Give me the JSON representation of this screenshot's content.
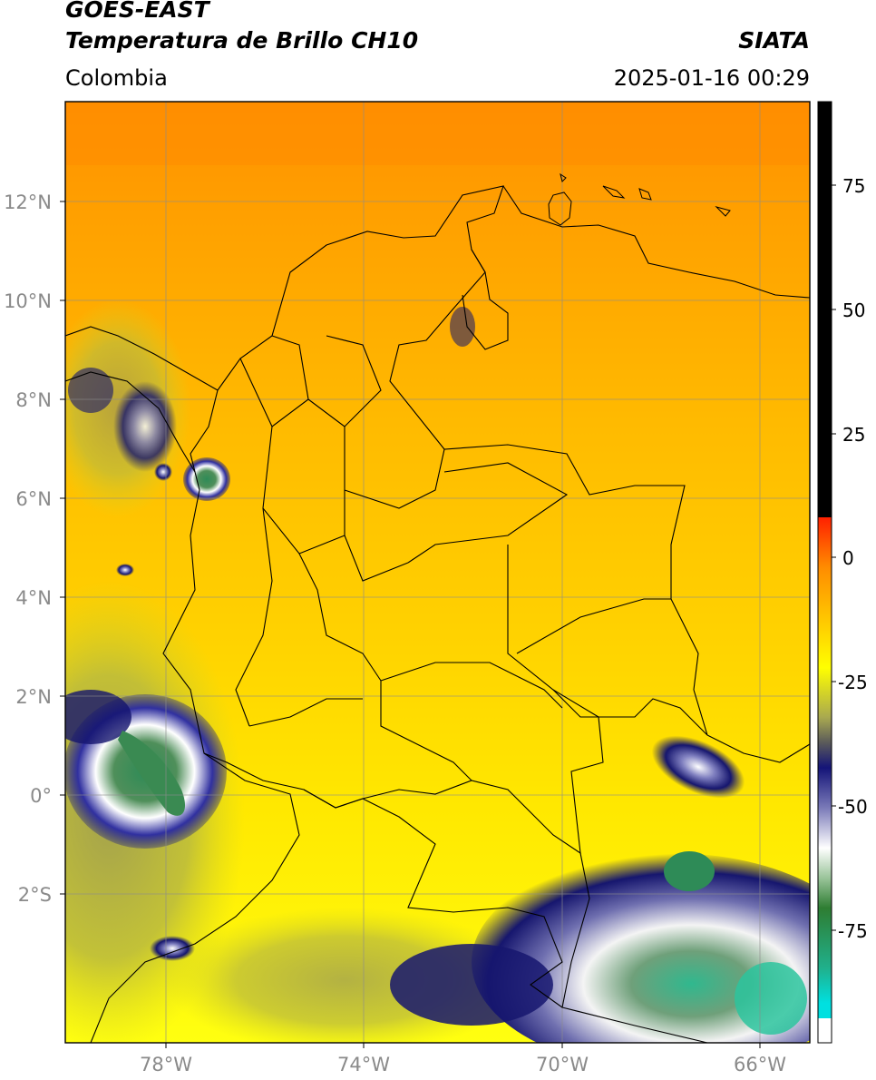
{
  "header": {
    "title_line1": "GOES-EAST",
    "title_line2": "Temperatura de Brillo CH10",
    "region": "Colombia",
    "brand": "SIATA",
    "datetime": "2025-01-16 00:29"
  },
  "map": {
    "lat_labels": [
      "12°N",
      "10°N",
      "8°N",
      "6°N",
      "4°N",
      "2°N",
      "0°",
      "2°S"
    ],
    "lon_labels": [
      "78°W",
      "74°W",
      "70°W",
      "66°W"
    ],
    "colors": {
      "warm_orange": "#ff9a00",
      "orange": "#ffb000",
      "yellow": "#ffe600",
      "bright_yellow": "#ffff00",
      "olive": "#b3b34d",
      "navy": "#14146e",
      "white": "#ffffff",
      "green": "#2e8b57",
      "teal": "#20c9a6",
      "border": "#000000",
      "grid": "#8c8c8c"
    }
  },
  "colorbar": {
    "ticks": [
      "75",
      "50",
      "25",
      "0",
      "-25",
      "-50",
      "-75"
    ]
  }
}
